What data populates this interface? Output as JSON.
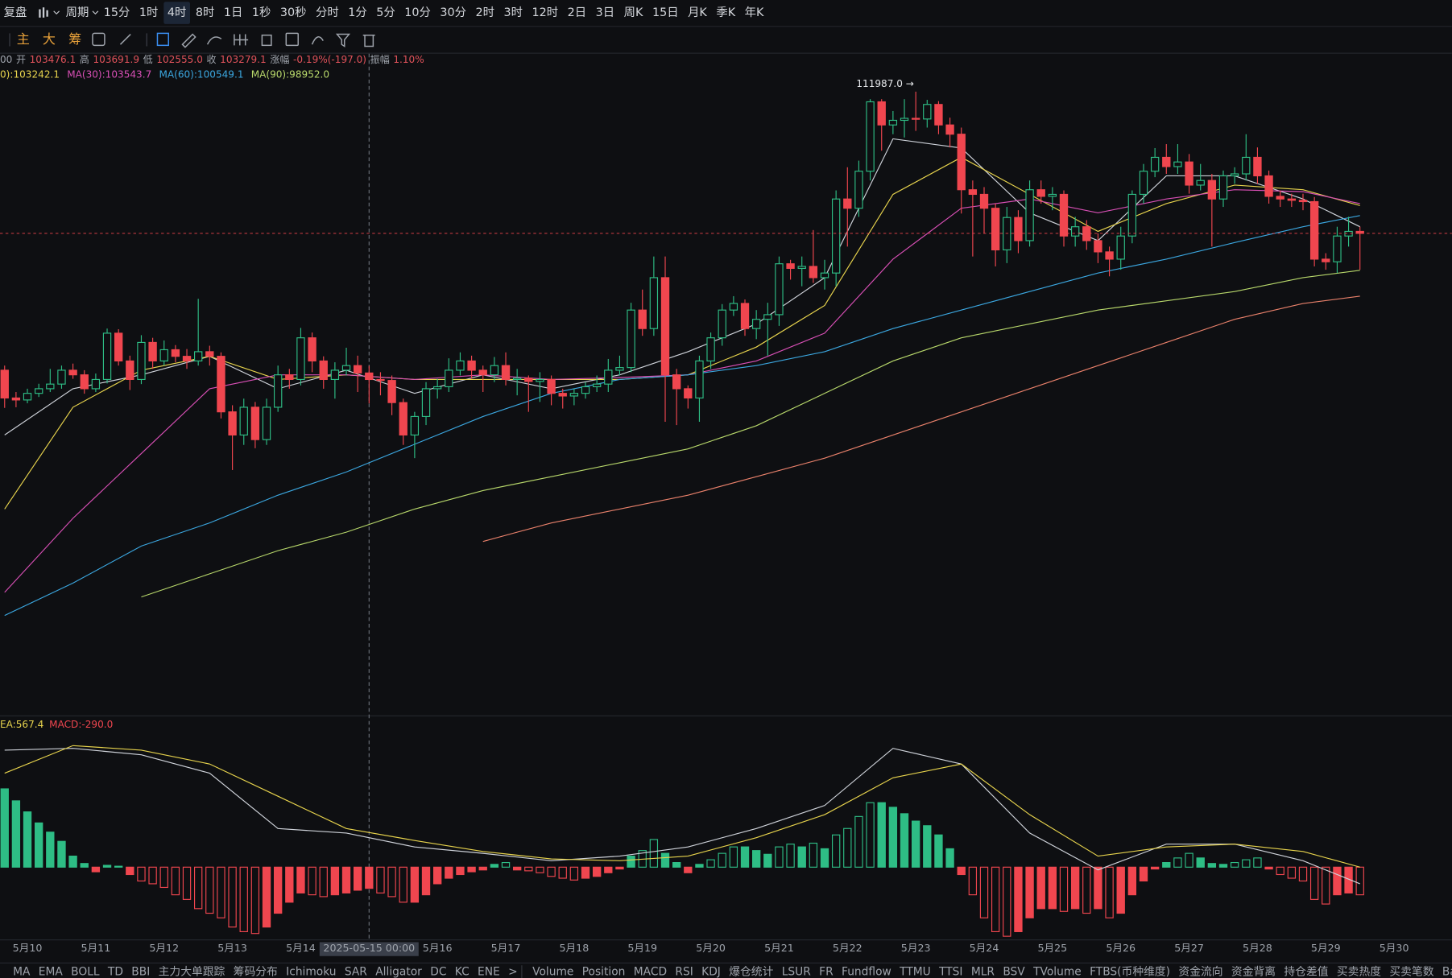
{
  "toolbar": {
    "items": [
      {
        "label": "复盘"
      },
      {
        "label": "周期"
      },
      {
        "label": "15分"
      },
      {
        "label": "1时"
      },
      {
        "label": "4时",
        "selected": true
      },
      {
        "label": "8时"
      },
      {
        "label": "1日"
      },
      {
        "label": "1秒"
      },
      {
        "label": "30秒"
      },
      {
        "label": "分时"
      },
      {
        "label": "1分"
      },
      {
        "label": "5分"
      },
      {
        "label": "10分"
      },
      {
        "label": "30分"
      },
      {
        "label": "2时"
      },
      {
        "label": "3时"
      },
      {
        "label": "12时"
      },
      {
        "label": "2日"
      },
      {
        "label": "3日"
      },
      {
        "label": "周K"
      },
      {
        "label": "15日"
      },
      {
        "label": "月K"
      },
      {
        "label": "季K"
      },
      {
        "label": "年K"
      }
    ],
    "tools": [
      "主",
      "大",
      "筹"
    ]
  },
  "info": [
    "00",
    "开",
    "103476.1",
    "高",
    "103691.9",
    "低",
    "102555.0",
    "收",
    "103279.1",
    "涨幅",
    "-0.19%(-197.0)",
    "振幅",
    "1.10%"
  ],
  "bottom_tabs": {
    "left": [
      {
        "label": "MA",
        "selected": true
      },
      {
        "label": "EMA"
      },
      {
        "label": "BOLL"
      },
      {
        "label": "TD"
      },
      {
        "label": "BBI"
      },
      {
        "label": "主力大单跟踪"
      },
      {
        "label": "筹码分布"
      },
      {
        "label": "Ichimoku"
      },
      {
        "label": "SAR"
      },
      {
        "label": "Alligator"
      },
      {
        "label": "DC"
      },
      {
        "label": "KC"
      },
      {
        "label": "ENE"
      },
      {
        "label": ">"
      }
    ],
    "right": [
      {
        "label": "Volume"
      },
      {
        "label": "Position"
      },
      {
        "label": "MACD",
        "selected": true
      },
      {
        "label": "RSI"
      },
      {
        "label": "KDJ"
      },
      {
        "label": "爆仓统计"
      },
      {
        "label": "LSUR"
      },
      {
        "label": "FR"
      },
      {
        "label": "Fundflow"
      },
      {
        "label": "TTMU"
      },
      {
        "label": "TTSI"
      },
      {
        "label": "MLR"
      },
      {
        "label": "BSV"
      },
      {
        "label": "TVolume"
      },
      {
        "label": "FTBS(币种维度)"
      },
      {
        "label": "资金流向"
      },
      {
        "label": "资金背离"
      },
      {
        "label": "持仓差值"
      },
      {
        "label": "买卖热度"
      },
      {
        "label": "买卖笔数"
      },
      {
        "label": "Basis"
      }
    ]
  },
  "x_labels": [
    "5月10",
    "5月11",
    "5月12",
    "5月13",
    "5月14",
    "2025-05-15 00:00",
    "5月16",
    "5月17",
    "5月18",
    "5月19",
    "5月20",
    "5月21",
    "5月22",
    "5月23",
    "5月24",
    "5月25",
    "5月26",
    "5月27",
    "5月28",
    "5月29",
    "5月30"
  ],
  "crosshair": 5,
  "chart_data": [
    {
      "type": "candlestick",
      "ylim": [
        93200,
        112660
      ],
      "up_color": "#2ebd85",
      "down_color": "#f0464f",
      "annotation": {
        "text": "111987.0 →",
        "index": 80
      },
      "open": [
        103560,
        102720,
        102660,
        102860,
        103000,
        103140,
        103560,
        103420,
        103000,
        103280,
        104680,
        103840,
        103280,
        104400,
        103840,
        104180,
        103980,
        103840,
        104120,
        103980,
        102300,
        101600,
        102440,
        101460,
        102440,
        103420,
        103280,
        104540,
        103840,
        103280,
        103560,
        103700,
        103476.1,
        103279.1,
        103250,
        102580,
        101600,
        102160,
        103000,
        103060,
        103560,
        103840,
        103560,
        103420,
        103700,
        103280,
        103320,
        103220,
        103280,
        102860,
        102780,
        102860,
        103060,
        103140,
        103560,
        103640,
        105380,
        104820,
        106360,
        103420,
        103000,
        102720,
        103840,
        104540,
        105380,
        105580,
        104820,
        105100,
        105240,
        106780,
        106640,
        106700,
        106360,
        106500,
        108740,
        108460,
        109580,
        111680,
        110980,
        111120,
        111180,
        111160,
        111600,
        110980,
        110700,
        109020,
        108880,
        108460,
        107200,
        108180,
        107480,
        109020,
        108820,
        108880,
        107620,
        107900,
        107480,
        107140,
        106920,
        107620,
        108880,
        109580,
        110000,
        109720,
        109860,
        109160,
        109300,
        108740,
        109440,
        109500,
        110000,
        109440,
        108820,
        108740,
        108700,
        108660,
        106920,
        106840,
        107620,
        107760
      ],
      "high": [
        103700,
        102900,
        103000,
        103150,
        103600,
        103700,
        103760,
        103560,
        103460,
        104820,
        104800,
        104000,
        104620,
        104540,
        104460,
        104320,
        104200,
        105720,
        104300,
        104100,
        102500,
        102700,
        102600,
        102700,
        103700,
        103600,
        104840,
        104700,
        103980,
        103800,
        104240,
        104000,
        103691.9,
        103500,
        103400,
        102700,
        102300,
        103200,
        103300,
        103920,
        104100,
        104000,
        103700,
        103960,
        104100,
        103600,
        103400,
        103500,
        103400,
        103000,
        103000,
        103200,
        103400,
        103900,
        104000,
        105600,
        106000,
        107000,
        107000,
        103600,
        103100,
        104000,
        104700,
        105560,
        105800,
        105700,
        105380,
        105600,
        107000,
        106900,
        107000,
        107800,
        106900,
        109000,
        109700,
        109900,
        111760,
        111760,
        111400,
        111760,
        111987.0,
        111740,
        111700,
        111200,
        110900,
        109300,
        109100,
        108600,
        108500,
        108400,
        109300,
        109300,
        109100,
        109000,
        108200,
        108100,
        107700,
        107300,
        107900,
        109000,
        109800,
        110280,
        110400,
        110400,
        110100,
        109800,
        109500,
        109600,
        109700,
        110700,
        110300,
        109600,
        109000,
        108900,
        108900,
        108800,
        107100,
        107900,
        108200,
        107900
      ],
      "low": [
        102420,
        102440,
        102560,
        102750,
        102900,
        103000,
        103300,
        102850,
        102900,
        103160,
        103700,
        102960,
        103140,
        103600,
        103700,
        103800,
        103600,
        103700,
        103700,
        102100,
        100540,
        101300,
        101200,
        101300,
        102300,
        103000,
        103100,
        103500,
        103000,
        102700,
        103400,
        102900,
        102555.0,
        102800,
        102200,
        101300,
        100900,
        101900,
        102700,
        102900,
        103400,
        103300,
        102900,
        103200,
        103100,
        102800,
        102300,
        102600,
        102500,
        102400,
        102500,
        102700,
        102900,
        102900,
        103400,
        103500,
        104600,
        104600,
        102000,
        101900,
        102400,
        102000,
        103600,
        104300,
        105200,
        104600,
        104500,
        104000,
        104900,
        106300,
        106100,
        106200,
        106000,
        106100,
        107300,
        108200,
        109300,
        110200,
        110700,
        110600,
        110800,
        110900,
        110700,
        110300,
        108300,
        107000,
        107700,
        106700,
        106800,
        107100,
        107300,
        108600,
        108400,
        107300,
        107300,
        107200,
        106800,
        106400,
        106600,
        107400,
        108600,
        109400,
        109500,
        109500,
        108900,
        109000,
        107300,
        108500,
        109200,
        109300,
        109200,
        108600,
        108500,
        108500,
        108400,
        106700,
        106600,
        106500,
        107300,
        106600
      ],
      "close": [
        102720,
        102660,
        102860,
        103000,
        103140,
        103560,
        103420,
        103000,
        103280,
        104680,
        103840,
        103280,
        104400,
        103840,
        104180,
        103980,
        103840,
        104120,
        103980,
        102300,
        101600,
        102440,
        101460,
        102440,
        103420,
        103280,
        104540,
        103840,
        103280,
        103560,
        103700,
        103476.1,
        103279.1,
        103250,
        102580,
        101600,
        102160,
        103000,
        103060,
        103560,
        103840,
        103560,
        103420,
        103700,
        103280,
        103320,
        103220,
        103280,
        102860,
        102780,
        102860,
        103060,
        103140,
        103560,
        103640,
        105380,
        104820,
        106360,
        103420,
        103000,
        102720,
        103840,
        104540,
        105380,
        105580,
        104820,
        105100,
        105240,
        106780,
        106640,
        106700,
        106360,
        106500,
        108740,
        108460,
        109580,
        111680,
        110980,
        111120,
        111180,
        111160,
        111600,
        110980,
        110700,
        109020,
        108880,
        108460,
        107200,
        108180,
        107480,
        109020,
        108820,
        108880,
        107620,
        107900,
        107480,
        107140,
        106920,
        107620,
        108880,
        109580,
        110000,
        109720,
        109860,
        109160,
        109300,
        108740,
        109440,
        109500,
        110000,
        109440,
        108820,
        108740,
        108700,
        108660,
        106920,
        106840,
        107620,
        107760,
        107700
      ],
      "ma_index": [
        0,
        6,
        12,
        18,
        24,
        30,
        36,
        42,
        48,
        54,
        60,
        66,
        72,
        78,
        84,
        90,
        96,
        102,
        108,
        114,
        119
      ],
      "ma": [
        {
          "color": "#cfd3da",
          "values": [
            101600,
            103000,
            103420,
            103980,
            103000,
            103560,
            102860,
            103420,
            103000,
            103420,
            104120,
            104960,
            106360,
            110560,
            110280,
            108320,
            107480,
            109440,
            109440,
            108740,
            107900
          ]
        },
        {
          "name": "0):103242.1",
          "color": "#e8d44d",
          "values": [
            99360,
            102440,
            103560,
            103980,
            103280,
            103420,
            103280,
            103280,
            103280,
            103280,
            103420,
            104260,
            105520,
            108880,
            110000,
            108880,
            107760,
            108600,
            109160,
            109020,
            108540
          ]
        },
        {
          "name": "MA(30):103543.7",
          "color": "#d84fb5",
          "values": [
            96840,
            99080,
            101040,
            103000,
            103420,
            103420,
            103280,
            103420,
            103280,
            103340,
            103420,
            103840,
            104680,
            106920,
            108460,
            108740,
            108320,
            108740,
            109020,
            108960,
            108600
          ]
        },
        {
          "name": "MA(60):100549.1",
          "color": "#3ba7e0",
          "values": [
            96140,
            97120,
            98240,
            98940,
            99780,
            100480,
            101320,
            102160,
            102860,
            103280,
            103420,
            103700,
            104120,
            104820,
            105380,
            105940,
            106500,
            106920,
            107420,
            107900,
            108240
          ]
        },
        {
          "name": "MA(90):98952.0",
          "color": "#b8d86b",
          "values": [
            null,
            null,
            96700,
            97400,
            98100,
            98660,
            99360,
            99920,
            100340,
            100760,
            101180,
            101880,
            102860,
            103840,
            104540,
            104960,
            105380,
            105660,
            105940,
            106360,
            106580
          ]
        },
        {
          "color": "#e9816b",
          "values": [
            null,
            null,
            null,
            null,
            null,
            null,
            null,
            98380,
            98940,
            99360,
            99780,
            100340,
            100900,
            101600,
            102300,
            103000,
            103700,
            104400,
            105100,
            105580,
            105800
          ]
        }
      ]
    },
    {
      "type": "macd",
      "ylim": [
        -950,
        1860
      ],
      "up_color": "#2ebd85",
      "down_color": "#f0464f",
      "hist": [
        1071,
        907,
        756,
        605,
        479,
        353,
        151,
        50,
        -63,
        25,
        13,
        -101,
        -189,
        -227,
        -277,
        -378,
        -441,
        -567,
        -630,
        -693,
        -819,
        -882,
        -907,
        -819,
        -630,
        -479,
        -353,
        -378,
        -403,
        -378,
        -353,
        -315,
        -290.0,
        -353,
        -403,
        -479,
        -479,
        -378,
        -227,
        -151,
        -101,
        -63,
        -38,
        38,
        63,
        -38,
        -50,
        -76,
        -126,
        -151,
        -176,
        -151,
        -126,
        -76,
        -25,
        151,
        227,
        378,
        189,
        63,
        -76,
        38,
        101,
        189,
        277,
        277,
        227,
        176,
        277,
        315,
        277,
        328,
        252,
        441,
        529,
        693,
        882,
        882,
        819,
        731,
        630,
        567,
        441,
        252,
        -101,
        -378,
        -693,
        -882,
        -945,
        -882,
        -693,
        -567,
        -567,
        -605,
        -567,
        -630,
        -567,
        -693,
        -630,
        -378,
        -189,
        -25,
        63,
        126,
        189,
        126,
        50,
        38,
        63,
        101,
        126,
        -25,
        -101,
        -151,
        -189,
        -441,
        -504,
        -378,
        -353,
        -378
      ],
      "hist_name": "MACD:-290.0",
      "hist_label_color": "#f0464f",
      "line_index": [
        0,
        6,
        12,
        18,
        24,
        30,
        36,
        42,
        48,
        54,
        60,
        66,
        72,
        78,
        84,
        90,
        96,
        102,
        108,
        114,
        119
      ],
      "lines": [
        {
          "color": "#cfd3da",
          "values": [
            1600,
            1625,
            1537,
            1285,
            529,
            466,
            277,
            189,
            88,
            151,
            277,
            529,
            844,
            1625,
            1411,
            466,
            -38,
            315,
            315,
            88,
            -227
          ]
        },
        {
          "name": "EA:567.4",
          "color": "#e8d44d",
          "values": [
            1285,
            1663,
            1600,
            1411,
            970,
            529,
            365,
            214,
            113,
            88,
            151,
            403,
            718,
            1222,
            1411,
            718,
            151,
            277,
            315,
            214,
            0
          ]
        }
      ]
    }
  ]
}
